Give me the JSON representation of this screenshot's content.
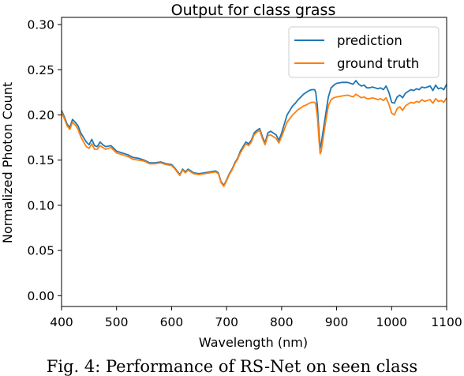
{
  "caption": "Fig. 4: Performance of RS-Net on seen class",
  "chart_data": {
    "type": "line",
    "title": "Output for class grass",
    "xlabel": "Wavelength (nm)",
    "ylabel": "Normalized Photon Count",
    "xlim": [
      400,
      1100
    ],
    "ylim": [
      -0.012,
      0.308
    ],
    "xticks": [
      400,
      500,
      600,
      700,
      800,
      900,
      1000,
      1100
    ],
    "yticks": [
      0.0,
      0.05,
      0.1,
      0.15,
      0.2,
      0.25,
      0.3
    ],
    "ytick_labels": [
      "0.00",
      "0.05",
      "0.10",
      "0.15",
      "0.20",
      "0.25",
      "0.30"
    ],
    "grid": false,
    "legend": {
      "position": "top-right",
      "entries": [
        "prediction",
        "ground truth"
      ]
    },
    "colors": {
      "prediction": "#1f77b4",
      "ground truth": "#ff7f0e"
    },
    "series": [
      {
        "name": "prediction",
        "x": [
          400,
          405,
          410,
          415,
          420,
          425,
          430,
          435,
          440,
          445,
          450,
          455,
          460,
          465,
          470,
          475,
          480,
          490,
          500,
          510,
          520,
          530,
          540,
          550,
          560,
          570,
          580,
          590,
          600,
          605,
          610,
          615,
          620,
          625,
          630,
          635,
          640,
          650,
          660,
          670,
          680,
          685,
          690,
          695,
          700,
          705,
          710,
          715,
          720,
          725,
          730,
          735,
          740,
          745,
          750,
          755,
          760,
          765,
          770,
          775,
          780,
          785,
          790,
          795,
          800,
          805,
          810,
          815,
          820,
          825,
          830,
          835,
          840,
          845,
          850,
          855,
          860,
          862,
          865,
          868,
          870,
          872,
          875,
          880,
          885,
          890,
          895,
          900,
          910,
          920,
          930,
          935,
          940,
          945,
          950,
          955,
          960,
          965,
          970,
          975,
          980,
          985,
          990,
          995,
          1000,
          1005,
          1010,
          1015,
          1020,
          1025,
          1030,
          1035,
          1040,
          1045,
          1050,
          1055,
          1060,
          1065,
          1070,
          1075,
          1080,
          1085,
          1090,
          1095,
          1100
        ],
        "y": [
          0.205,
          0.198,
          0.19,
          0.186,
          0.195,
          0.192,
          0.188,
          0.18,
          0.175,
          0.17,
          0.167,
          0.173,
          0.166,
          0.165,
          0.17,
          0.167,
          0.165,
          0.166,
          0.16,
          0.158,
          0.156,
          0.153,
          0.152,
          0.15,
          0.147,
          0.147,
          0.148,
          0.146,
          0.145,
          0.142,
          0.138,
          0.134,
          0.14,
          0.137,
          0.14,
          0.138,
          0.136,
          0.135,
          0.136,
          0.137,
          0.138,
          0.136,
          0.126,
          0.122,
          0.128,
          0.135,
          0.14,
          0.147,
          0.152,
          0.16,
          0.165,
          0.17,
          0.168,
          0.172,
          0.18,
          0.183,
          0.185,
          0.176,
          0.169,
          0.18,
          0.182,
          0.18,
          0.178,
          0.172,
          0.18,
          0.19,
          0.2,
          0.205,
          0.21,
          0.213,
          0.217,
          0.22,
          0.223,
          0.225,
          0.227,
          0.228,
          0.228,
          0.225,
          0.21,
          0.18,
          0.163,
          0.168,
          0.18,
          0.2,
          0.22,
          0.23,
          0.233,
          0.235,
          0.236,
          0.236,
          0.234,
          0.238,
          0.234,
          0.232,
          0.233,
          0.23,
          0.23,
          0.231,
          0.23,
          0.229,
          0.23,
          0.228,
          0.232,
          0.225,
          0.214,
          0.213,
          0.22,
          0.222,
          0.219,
          0.224,
          0.226,
          0.228,
          0.227,
          0.229,
          0.228,
          0.231,
          0.23,
          0.231,
          0.232,
          0.227,
          0.233,
          0.229,
          0.23,
          0.228,
          0.234
        ]
      },
      {
        "name": "ground truth",
        "x": [
          400,
          405,
          410,
          415,
          420,
          425,
          430,
          435,
          440,
          445,
          450,
          455,
          460,
          465,
          470,
          475,
          480,
          490,
          500,
          510,
          520,
          530,
          540,
          550,
          560,
          570,
          580,
          590,
          600,
          605,
          610,
          615,
          620,
          625,
          630,
          635,
          640,
          650,
          660,
          670,
          680,
          685,
          690,
          695,
          700,
          705,
          710,
          715,
          720,
          725,
          730,
          735,
          740,
          745,
          750,
          755,
          760,
          765,
          770,
          775,
          780,
          785,
          790,
          795,
          800,
          805,
          810,
          815,
          820,
          825,
          830,
          835,
          840,
          845,
          850,
          855,
          860,
          862,
          865,
          868,
          870,
          872,
          875,
          880,
          885,
          890,
          895,
          900,
          910,
          920,
          930,
          935,
          940,
          945,
          950,
          955,
          960,
          965,
          970,
          975,
          980,
          985,
          990,
          995,
          1000,
          1005,
          1010,
          1015,
          1020,
          1025,
          1030,
          1035,
          1040,
          1045,
          1050,
          1055,
          1060,
          1065,
          1070,
          1075,
          1080,
          1085,
          1090,
          1095,
          1100
        ],
        "y": [
          0.203,
          0.196,
          0.188,
          0.184,
          0.192,
          0.189,
          0.184,
          0.176,
          0.17,
          0.165,
          0.163,
          0.168,
          0.162,
          0.162,
          0.166,
          0.164,
          0.162,
          0.164,
          0.158,
          0.156,
          0.154,
          0.151,
          0.15,
          0.149,
          0.146,
          0.146,
          0.147,
          0.145,
          0.144,
          0.141,
          0.137,
          0.133,
          0.139,
          0.136,
          0.139,
          0.137,
          0.135,
          0.134,
          0.135,
          0.136,
          0.137,
          0.135,
          0.125,
          0.121,
          0.127,
          0.134,
          0.139,
          0.146,
          0.151,
          0.158,
          0.163,
          0.168,
          0.166,
          0.17,
          0.178,
          0.181,
          0.183,
          0.174,
          0.167,
          0.177,
          0.178,
          0.176,
          0.174,
          0.169,
          0.176,
          0.184,
          0.192,
          0.196,
          0.2,
          0.203,
          0.206,
          0.208,
          0.21,
          0.211,
          0.213,
          0.214,
          0.214,
          0.212,
          0.198,
          0.172,
          0.157,
          0.16,
          0.172,
          0.192,
          0.21,
          0.217,
          0.219,
          0.22,
          0.221,
          0.222,
          0.22,
          0.223,
          0.221,
          0.219,
          0.22,
          0.218,
          0.218,
          0.219,
          0.218,
          0.217,
          0.218,
          0.216,
          0.219,
          0.212,
          0.202,
          0.2,
          0.207,
          0.209,
          0.205,
          0.21,
          0.212,
          0.214,
          0.213,
          0.215,
          0.214,
          0.217,
          0.215,
          0.216,
          0.217,
          0.213,
          0.218,
          0.215,
          0.216,
          0.214,
          0.219
        ]
      }
    ]
  }
}
